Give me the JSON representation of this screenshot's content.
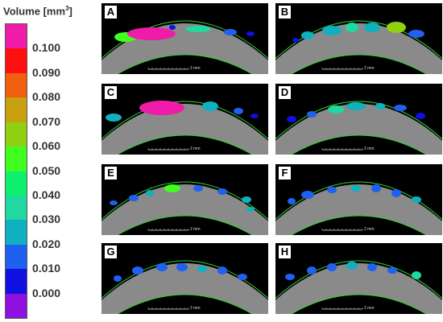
{
  "legend": {
    "title_main": "Volume [mm",
    "title_sup": "3",
    "title_end": "]",
    "colors": [
      "#ee1ca8",
      "#ff1010",
      "#f06010",
      "#c8a010",
      "#90d010",
      "#40ff20",
      "#10f070",
      "#20d8a0",
      "#10b0c0",
      "#2060f0",
      "#1010e0",
      "#9010e0"
    ],
    "ticks": [
      "0.100",
      "0.090",
      "0.080",
      "0.070",
      "0.060",
      "0.050",
      "0.040",
      "0.030",
      "0.020",
      "0.010",
      "0.000"
    ]
  },
  "scale_bar_label": "2 mm",
  "panels": [
    {
      "label": "A"
    },
    {
      "label": "B"
    },
    {
      "label": "C"
    },
    {
      "label": "D"
    },
    {
      "label": "E"
    },
    {
      "label": "F"
    },
    {
      "label": "G"
    },
    {
      "label": "H"
    }
  ]
}
